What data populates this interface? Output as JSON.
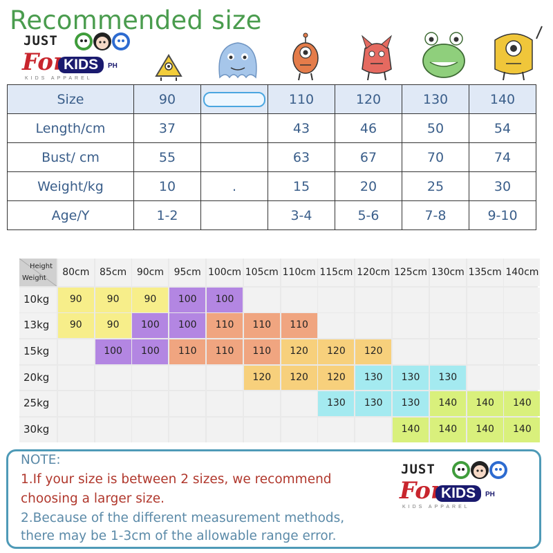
{
  "title": "Recommended size",
  "logo": {
    "just": "JUST",
    "for": "For",
    "kids": "KIDS",
    "ph": "PH",
    "sub": "KIDS APPAREL"
  },
  "size_table": {
    "headers": [
      "Size",
      "90",
      "",
      "110",
      "120",
      "130",
      "140"
    ],
    "rows": [
      {
        "label": "Length/cm",
        "values": [
          "37",
          "",
          "43",
          "46",
          "50",
          "54"
        ]
      },
      {
        "label": "Bust/ cm",
        "values": [
          "55",
          "",
          "63",
          "67",
          "70",
          "74"
        ]
      },
      {
        "label": "Weight/kg",
        "values": [
          "10",
          ".",
          "15",
          "20",
          "25",
          "30"
        ]
      },
      {
        "label": "Age/Y",
        "values": [
          "1-2",
          "",
          "3-4",
          "5-6",
          "7-8",
          "9-10"
        ]
      }
    ]
  },
  "grid_chart": {
    "corner_height": "Height",
    "corner_weight": "Weight",
    "heights": [
      "80cm",
      "85cm",
      "90cm",
      "95cm",
      "100cm",
      "105cm",
      "110cm",
      "115cm",
      "120cm",
      "125cm",
      "130cm",
      "135cm",
      "140cm"
    ],
    "weights": [
      "10kg",
      "13kg",
      "15kg",
      "20kg",
      "25kg",
      "30kg"
    ],
    "cells": [
      [
        "90",
        "90",
        "90",
        "100",
        "100",
        "",
        "",
        "",
        "",
        "",
        "",
        "",
        ""
      ],
      [
        "90",
        "90",
        "100",
        "100",
        "110",
        "110",
        "110",
        "",
        "",
        "",
        "",
        "",
        ""
      ],
      [
        "",
        "100",
        "100",
        "110",
        "110",
        "110",
        "120",
        "120",
        "120",
        "",
        "",
        "",
        ""
      ],
      [
        "",
        "",
        "",
        "",
        "",
        "120",
        "120",
        "120",
        "130",
        "130",
        "130",
        "",
        ""
      ],
      [
        "",
        "",
        "",
        "",
        "",
        "",
        "",
        "130",
        "130",
        "130",
        "140",
        "140",
        "140"
      ],
      [
        "",
        "",
        "",
        "",
        "",
        "",
        "",
        "",
        "",
        "140",
        "140",
        "140",
        "140"
      ]
    ],
    "size_colors": {
      "90": "#f7ee8a",
      "100": "#b386e2",
      "110": "#f0a580",
      "120": "#f7d07c",
      "130": "#a4eaf0",
      "140": "#d9f07c"
    }
  },
  "note": {
    "heading": "NOTE:",
    "line1": "1.If your size is between 2 sizes, we recommend",
    "line2": "choosing a larger size.",
    "line3": "2.Because of the different measurement methods,",
    "line4": "there may be 1-3cm of the allowable range error."
  },
  "colors": {
    "title": "#4a9c4e",
    "header_bg": "#e0e9f6",
    "note_border": "#4e9ab7",
    "note_red": "#b0372c",
    "note_blue": "#5b8aa8"
  }
}
